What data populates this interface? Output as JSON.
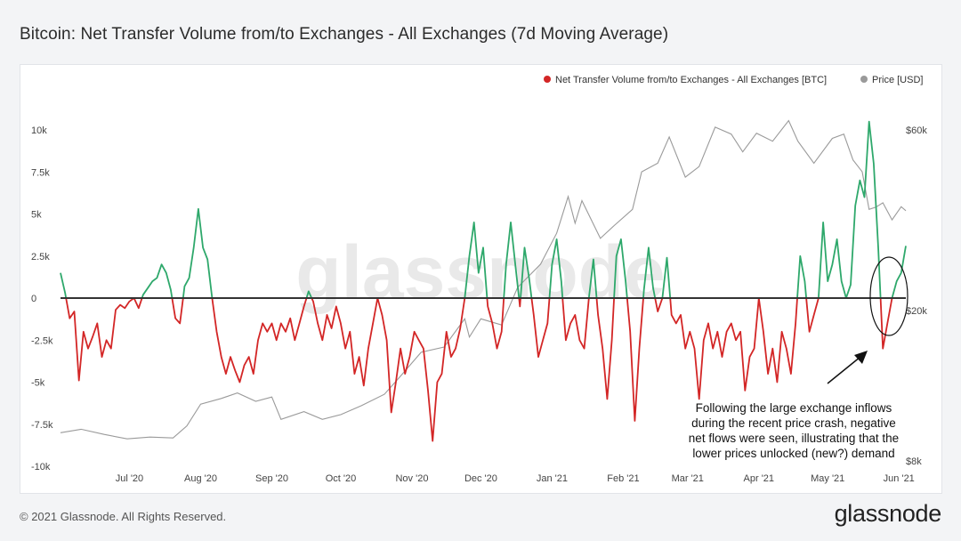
{
  "header": {
    "title": "Bitcoin: Net Transfer Volume from/to Exchanges - All Exchanges (7d Moving Average)"
  },
  "footer": {
    "copyright": "© 2021 Glassnode. All Rights Reserved.",
    "brand": "glassnode"
  },
  "watermark": "glassnode",
  "colors": {
    "positive": "#2ea86b",
    "negative": "#d32626",
    "price": "#9a9a9a",
    "zero_line": "#333333",
    "background": "#ffffff",
    "page": "#f3f4f6"
  },
  "chart_data": {
    "type": "line",
    "title": "Bitcoin: Net Transfer Volume from/to Exchanges - All Exchanges (7d Moving Average)",
    "x_range": [
      "2020-06-01",
      "2021-06-04"
    ],
    "x_ticks": [
      "Jul '20",
      "Aug '20",
      "Sep '20",
      "Oct '20",
      "Nov '20",
      "Dec '20",
      "Jan '21",
      "Feb '21",
      "Mar '21",
      "Apr '21",
      "May '21",
      "Jun '21"
    ],
    "y_left": {
      "range": [
        -10000,
        10500
      ],
      "ticks": [
        10000,
        7500,
        5000,
        2500,
        0,
        -2500,
        -5000,
        -7500,
        -10000
      ],
      "tick_labels": [
        "10k",
        "7.5k",
        "5k",
        "2.5k",
        "0",
        "-2.5k",
        "-5k",
        "-7.5k",
        "-10k"
      ]
    },
    "y_right": {
      "scale": "log",
      "range": [
        8000,
        64000
      ],
      "ticks": [
        60000,
        20000,
        8000
      ],
      "tick_labels": [
        "$60k",
        "$20k",
        "$8k"
      ]
    },
    "legend": {
      "position": "top-right",
      "entries": [
        {
          "label": "Net Transfer Volume from/to Exchanges - All Exchanges [BTC]",
          "color": "#d32626"
        },
        {
          "label": "Price [USD]",
          "color": "#9a9a9a"
        }
      ]
    },
    "series": [
      {
        "name": "Net Transfer Volume from/to Exchanges - All Exchanges [BTC]",
        "axis": "left",
        "points": [
          [
            "2020-06-01",
            1500
          ],
          [
            "2020-06-03",
            300
          ],
          [
            "2020-06-05",
            -1200
          ],
          [
            "2020-06-07",
            -800
          ],
          [
            "2020-06-09",
            -4900
          ],
          [
            "2020-06-11",
            -2000
          ],
          [
            "2020-06-13",
            -3000
          ],
          [
            "2020-06-15",
            -2300
          ],
          [
            "2020-06-17",
            -1500
          ],
          [
            "2020-06-19",
            -3500
          ],
          [
            "2020-06-21",
            -2500
          ],
          [
            "2020-06-23",
            -3000
          ],
          [
            "2020-06-25",
            -700
          ],
          [
            "2020-06-27",
            -400
          ],
          [
            "2020-06-29",
            -600
          ],
          [
            "2020-07-01",
            -200
          ],
          [
            "2020-07-03",
            0
          ],
          [
            "2020-07-05",
            -600
          ],
          [
            "2020-07-07",
            200
          ],
          [
            "2020-07-09",
            600
          ],
          [
            "2020-07-11",
            1000
          ],
          [
            "2020-07-13",
            1200
          ],
          [
            "2020-07-15",
            2000
          ],
          [
            "2020-07-17",
            1500
          ],
          [
            "2020-07-19",
            500
          ],
          [
            "2020-07-21",
            -1200
          ],
          [
            "2020-07-23",
            -1500
          ],
          [
            "2020-07-25",
            700
          ],
          [
            "2020-07-27",
            1200
          ],
          [
            "2020-07-29",
            3000
          ],
          [
            "2020-07-31",
            5300
          ],
          [
            "2020-08-02",
            3000
          ],
          [
            "2020-08-04",
            2300
          ],
          [
            "2020-08-06",
            0
          ],
          [
            "2020-08-08",
            -2000
          ],
          [
            "2020-08-10",
            -3500
          ],
          [
            "2020-08-12",
            -4500
          ],
          [
            "2020-08-14",
            -3500
          ],
          [
            "2020-08-16",
            -4300
          ],
          [
            "2020-08-18",
            -5000
          ],
          [
            "2020-08-20",
            -4000
          ],
          [
            "2020-08-22",
            -3500
          ],
          [
            "2020-08-24",
            -4500
          ],
          [
            "2020-08-26",
            -2500
          ],
          [
            "2020-08-28",
            -1500
          ],
          [
            "2020-08-30",
            -2000
          ],
          [
            "2020-09-01",
            -1500
          ],
          [
            "2020-09-03",
            -2500
          ],
          [
            "2020-09-05",
            -1500
          ],
          [
            "2020-09-07",
            -2000
          ],
          [
            "2020-09-09",
            -1200
          ],
          [
            "2020-09-11",
            -2500
          ],
          [
            "2020-09-13",
            -1500
          ],
          [
            "2020-09-15",
            -500
          ],
          [
            "2020-09-17",
            400
          ],
          [
            "2020-09-19",
            -200
          ],
          [
            "2020-09-21",
            -1500
          ],
          [
            "2020-09-23",
            -2500
          ],
          [
            "2020-09-25",
            -1000
          ],
          [
            "2020-09-27",
            -1800
          ],
          [
            "2020-09-29",
            -500
          ],
          [
            "2020-10-01",
            -1500
          ],
          [
            "2020-10-03",
            -3000
          ],
          [
            "2020-10-05",
            -2000
          ],
          [
            "2020-10-07",
            -4500
          ],
          [
            "2020-10-09",
            -3500
          ],
          [
            "2020-10-11",
            -5200
          ],
          [
            "2020-10-13",
            -3000
          ],
          [
            "2020-10-15",
            -1500
          ],
          [
            "2020-10-17",
            0
          ],
          [
            "2020-10-19",
            -1000
          ],
          [
            "2020-10-21",
            -2500
          ],
          [
            "2020-10-23",
            -6800
          ],
          [
            "2020-10-25",
            -5000
          ],
          [
            "2020-10-27",
            -3000
          ],
          [
            "2020-10-29",
            -4500
          ],
          [
            "2020-10-31",
            -3500
          ],
          [
            "2020-11-02",
            -2000
          ],
          [
            "2020-11-04",
            -2500
          ],
          [
            "2020-11-06",
            -3000
          ],
          [
            "2020-11-08",
            -5500
          ],
          [
            "2020-11-10",
            -8500
          ],
          [
            "2020-11-12",
            -5000
          ],
          [
            "2020-11-14",
            -4500
          ],
          [
            "2020-11-16",
            -2000
          ],
          [
            "2020-11-18",
            -3500
          ],
          [
            "2020-11-20",
            -3000
          ],
          [
            "2020-11-22",
            -1800
          ],
          [
            "2020-11-24",
            0
          ],
          [
            "2020-11-26",
            2500
          ],
          [
            "2020-11-28",
            4500
          ],
          [
            "2020-11-30",
            1500
          ],
          [
            "2020-12-02",
            3000
          ],
          [
            "2020-12-04",
            -500
          ],
          [
            "2020-12-06",
            -1500
          ],
          [
            "2020-12-08",
            -3000
          ],
          [
            "2020-12-10",
            -2000
          ],
          [
            "2020-12-12",
            2000
          ],
          [
            "2020-12-14",
            4500
          ],
          [
            "2020-12-16",
            2000
          ],
          [
            "2020-12-18",
            -500
          ],
          [
            "2020-12-20",
            3000
          ],
          [
            "2020-12-22",
            1200
          ],
          [
            "2020-12-24",
            -1000
          ],
          [
            "2020-12-26",
            -3500
          ],
          [
            "2020-12-28",
            -2500
          ],
          [
            "2020-12-30",
            -1500
          ],
          [
            "2021-01-01",
            2000
          ],
          [
            "2021-01-03",
            3500
          ],
          [
            "2021-01-05",
            1000
          ],
          [
            "2021-01-07",
            -2500
          ],
          [
            "2021-01-09",
            -1500
          ],
          [
            "2021-01-11",
            -1000
          ],
          [
            "2021-01-13",
            -2500
          ],
          [
            "2021-01-15",
            -3000
          ],
          [
            "2021-01-17",
            0
          ],
          [
            "2021-01-19",
            2300
          ],
          [
            "2021-01-21",
            -1000
          ],
          [
            "2021-01-23",
            -3000
          ],
          [
            "2021-01-25",
            -6000
          ],
          [
            "2021-01-27",
            -2500
          ],
          [
            "2021-01-29",
            2500
          ],
          [
            "2021-01-31",
            3500
          ],
          [
            "2021-02-02",
            1000
          ],
          [
            "2021-02-04",
            -2000
          ],
          [
            "2021-02-06",
            -7300
          ],
          [
            "2021-02-08",
            -3000
          ],
          [
            "2021-02-10",
            500
          ],
          [
            "2021-02-12",
            3000
          ],
          [
            "2021-02-14",
            600
          ],
          [
            "2021-02-16",
            -800
          ],
          [
            "2021-02-18",
            0
          ],
          [
            "2021-02-20",
            2400
          ],
          [
            "2021-02-22",
            -1000
          ],
          [
            "2021-02-24",
            -1500
          ],
          [
            "2021-02-26",
            -1000
          ],
          [
            "2021-02-28",
            -3000
          ],
          [
            "2021-03-02",
            -2000
          ],
          [
            "2021-03-04",
            -3000
          ],
          [
            "2021-03-06",
            -6000
          ],
          [
            "2021-03-08",
            -2500
          ],
          [
            "2021-03-10",
            -1500
          ],
          [
            "2021-03-12",
            -3000
          ],
          [
            "2021-03-14",
            -2000
          ],
          [
            "2021-03-16",
            -3500
          ],
          [
            "2021-03-18",
            -2000
          ],
          [
            "2021-03-20",
            -1500
          ],
          [
            "2021-03-22",
            -2500
          ],
          [
            "2021-03-24",
            -2000
          ],
          [
            "2021-03-26",
            -5500
          ],
          [
            "2021-03-28",
            -3500
          ],
          [
            "2021-03-30",
            -3000
          ],
          [
            "2021-04-01",
            0
          ],
          [
            "2021-04-03",
            -2000
          ],
          [
            "2021-04-05",
            -4500
          ],
          [
            "2021-04-07",
            -3000
          ],
          [
            "2021-04-09",
            -5000
          ],
          [
            "2021-04-11",
            -2000
          ],
          [
            "2021-04-13",
            -3000
          ],
          [
            "2021-04-15",
            -4500
          ],
          [
            "2021-04-17",
            -1500
          ],
          [
            "2021-04-19",
            2500
          ],
          [
            "2021-04-21",
            1000
          ],
          [
            "2021-04-23",
            -2000
          ],
          [
            "2021-04-25",
            -1000
          ],
          [
            "2021-04-27",
            0
          ],
          [
            "2021-04-29",
            4500
          ],
          [
            "2021-05-01",
            1000
          ],
          [
            "2021-05-03",
            2000
          ],
          [
            "2021-05-05",
            3500
          ],
          [
            "2021-05-07",
            1000
          ],
          [
            "2021-05-09",
            0
          ],
          [
            "2021-05-11",
            800
          ],
          [
            "2021-05-13",
            5500
          ],
          [
            "2021-05-15",
            7000
          ],
          [
            "2021-05-17",
            6000
          ],
          [
            "2021-05-19",
            10500
          ],
          [
            "2021-05-21",
            8000
          ],
          [
            "2021-05-23",
            3000
          ],
          [
            "2021-05-25",
            -3000
          ],
          [
            "2021-05-27",
            -1500
          ],
          [
            "2021-05-29",
            0
          ],
          [
            "2021-05-31",
            1000
          ],
          [
            "2021-06-02",
            1500
          ],
          [
            "2021-06-04",
            3100
          ]
        ]
      },
      {
        "name": "Price [USD]",
        "axis": "right",
        "points": [
          [
            "2020-06-01",
            9500
          ],
          [
            "2020-06-10",
            9700
          ],
          [
            "2020-06-20",
            9400
          ],
          [
            "2020-06-30",
            9150
          ],
          [
            "2020-07-10",
            9250
          ],
          [
            "2020-07-20",
            9200
          ],
          [
            "2020-07-26",
            9900
          ],
          [
            "2020-08-01",
            11300
          ],
          [
            "2020-08-10",
            11700
          ],
          [
            "2020-08-17",
            12100
          ],
          [
            "2020-08-25",
            11500
          ],
          [
            "2020-09-01",
            11800
          ],
          [
            "2020-09-05",
            10300
          ],
          [
            "2020-09-15",
            10800
          ],
          [
            "2020-09-23",
            10300
          ],
          [
            "2020-10-01",
            10600
          ],
          [
            "2020-10-10",
            11200
          ],
          [
            "2020-10-20",
            12000
          ],
          [
            "2020-10-27",
            13400
          ],
          [
            "2020-11-05",
            15500
          ],
          [
            "2020-11-15",
            16000
          ],
          [
            "2020-11-24",
            19000
          ],
          [
            "2020-11-26",
            17000
          ],
          [
            "2020-12-01",
            19000
          ],
          [
            "2020-12-10",
            18300
          ],
          [
            "2020-12-17",
            23000
          ],
          [
            "2020-12-27",
            26500
          ],
          [
            "2021-01-03",
            32000
          ],
          [
            "2021-01-08",
            40000
          ],
          [
            "2021-01-11",
            34000
          ],
          [
            "2021-01-14",
            39000
          ],
          [
            "2021-01-22",
            31000
          ],
          [
            "2021-01-28",
            33500
          ],
          [
            "2021-02-05",
            37000
          ],
          [
            "2021-02-09",
            46500
          ],
          [
            "2021-02-16",
            49000
          ],
          [
            "2021-02-21",
            57500
          ],
          [
            "2021-02-28",
            45000
          ],
          [
            "2021-03-06",
            48000
          ],
          [
            "2021-03-13",
            61000
          ],
          [
            "2021-03-20",
            58500
          ],
          [
            "2021-03-25",
            52500
          ],
          [
            "2021-03-31",
            58800
          ],
          [
            "2021-04-07",
            56000
          ],
          [
            "2021-04-14",
            63500
          ],
          [
            "2021-04-18",
            56000
          ],
          [
            "2021-04-25",
            49000
          ],
          [
            "2021-05-03",
            57000
          ],
          [
            "2021-05-08",
            58500
          ],
          [
            "2021-05-12",
            50000
          ],
          [
            "2021-05-16",
            46500
          ],
          [
            "2021-05-19",
            37000
          ],
          [
            "2021-05-22",
            37500
          ],
          [
            "2021-05-25",
            38500
          ],
          [
            "2021-05-29",
            34700
          ],
          [
            "2021-06-02",
            37600
          ],
          [
            "2021-06-04",
            36700
          ]
        ]
      }
    ],
    "annotation": {
      "text": [
        "Following the large exchange inflows",
        "during the recent price crash, negative",
        "net flows were seen, illustrating that the",
        "lower prices unlocked (new?) demand"
      ]
    }
  }
}
